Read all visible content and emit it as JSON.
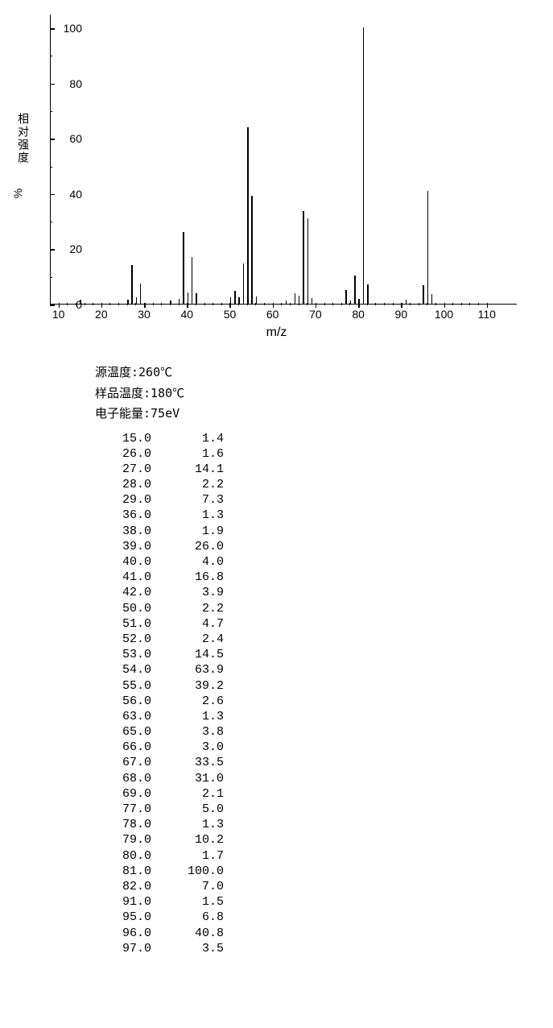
{
  "chart": {
    "type": "mass-spectrum",
    "ylabel": "相对强度",
    "ylabel_pct": "%",
    "xlabel": "m/z",
    "xlim": [
      8,
      117
    ],
    "ylim": [
      0,
      105
    ],
    "xtick_major": [
      10,
      20,
      30,
      40,
      50,
      60,
      70,
      80,
      90,
      100,
      110
    ],
    "xtick_minor_step": 2,
    "ytick_major": [
      0,
      20,
      40,
      60,
      80,
      100
    ],
    "ytick_minor_step": 10,
    "label_fontsize": 14,
    "tick_fontsize": 14,
    "peak_color": "#000000",
    "axis_color": "#000000",
    "background": "#ffffff",
    "peaks": [
      {
        "mz": 15.0,
        "i": 1.4
      },
      {
        "mz": 26.0,
        "i": 1.6
      },
      {
        "mz": 27.0,
        "i": 14.1
      },
      {
        "mz": 28.0,
        "i": 2.2
      },
      {
        "mz": 29.0,
        "i": 7.3
      },
      {
        "mz": 36.0,
        "i": 1.3
      },
      {
        "mz": 38.0,
        "i": 1.9
      },
      {
        "mz": 39.0,
        "i": 26.0
      },
      {
        "mz": 40.0,
        "i": 4.0
      },
      {
        "mz": 41.0,
        "i": 16.8
      },
      {
        "mz": 42.0,
        "i": 3.9
      },
      {
        "mz": 50.0,
        "i": 2.2
      },
      {
        "mz": 51.0,
        "i": 4.7
      },
      {
        "mz": 52.0,
        "i": 2.4
      },
      {
        "mz": 53.0,
        "i": 14.5
      },
      {
        "mz": 54.0,
        "i": 63.9
      },
      {
        "mz": 55.0,
        "i": 39.2
      },
      {
        "mz": 56.0,
        "i": 2.6
      },
      {
        "mz": 63.0,
        "i": 1.3
      },
      {
        "mz": 65.0,
        "i": 3.8
      },
      {
        "mz": 66.0,
        "i": 3.0
      },
      {
        "mz": 67.0,
        "i": 33.5
      },
      {
        "mz": 68.0,
        "i": 31.0
      },
      {
        "mz": 69.0,
        "i": 2.1
      },
      {
        "mz": 77.0,
        "i": 5.0
      },
      {
        "mz": 78.0,
        "i": 1.3
      },
      {
        "mz": 79.0,
        "i": 10.2
      },
      {
        "mz": 80.0,
        "i": 1.7
      },
      {
        "mz": 81.0,
        "i": 100.0
      },
      {
        "mz": 82.0,
        "i": 7.0
      },
      {
        "mz": 91.0,
        "i": 1.5
      },
      {
        "mz": 95.0,
        "i": 6.8
      },
      {
        "mz": 96.0,
        "i": 40.8
      },
      {
        "mz": 97.0,
        "i": 3.5
      }
    ]
  },
  "meta": {
    "source_temp_label": "源温度:",
    "source_temp": "260℃",
    "sample_temp_label": "样品温度:",
    "sample_temp": "180℃",
    "electron_energy_label": "电子能量:",
    "electron_energy": "75eV"
  }
}
